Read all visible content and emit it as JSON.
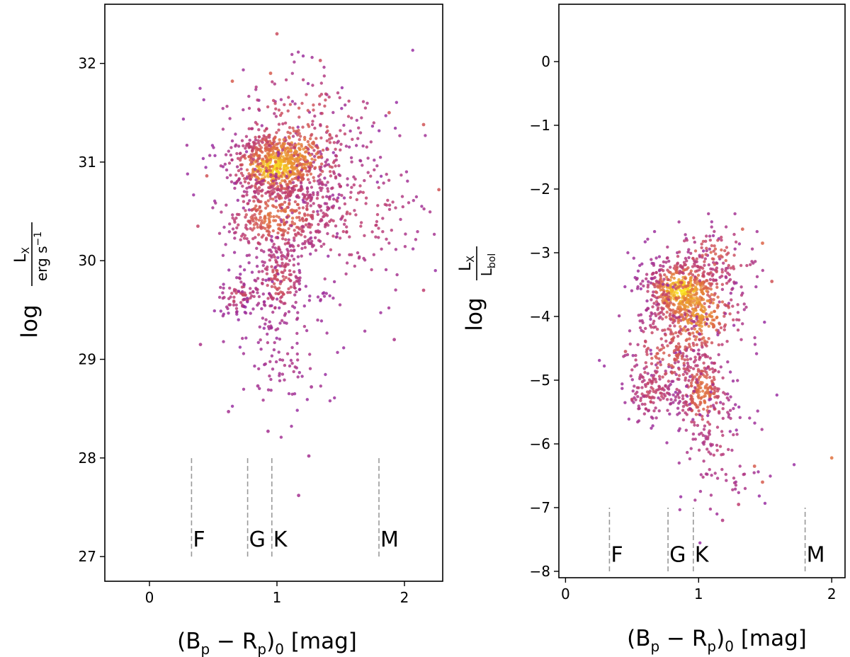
{
  "chart_data": [
    {
      "type": "scatter",
      "id": "left",
      "title": "",
      "xlabel": "(Bp − Rp)0 [mag]",
      "ylabel": "log Lx / erg s−1",
      "ylabel_parts": {
        "log": "log",
        "num": "L",
        "num_sub": "X",
        "den": "erg s",
        "den_sup": "−1"
      },
      "xlabel_parts": {
        "open": "(B",
        "s1": "p",
        "mid": " − R",
        "s2": "p",
        "close": ")",
        "s3": "0",
        "unit": " [mag]"
      },
      "xlim": [
        -0.35,
        2.3
      ],
      "ylim": [
        26.75,
        32.6
      ],
      "xticks": [
        0,
        1,
        2
      ],
      "xtick_labels": [
        "0",
        "1",
        "2"
      ],
      "yticks": [
        27,
        28,
        29,
        30,
        31,
        32
      ],
      "ytick_labels": [
        "27",
        "28",
        "29",
        "30",
        "31",
        "32"
      ],
      "grid": false,
      "class_markers": [
        {
          "label": "F",
          "x": 0.33
        },
        {
          "label": "G",
          "x": 0.77
        },
        {
          "label": "K",
          "x": 0.96
        },
        {
          "label": "M",
          "x": 1.8
        }
      ],
      "class_line_range": [
        27.0,
        28.0
      ],
      "class_label_y": 27.1,
      "clusters": [
        {
          "cx": 0.98,
          "cy": 30.95,
          "sx": 0.17,
          "sy": 0.15,
          "n": 520,
          "density": 0.95
        },
        {
          "cx": 1.12,
          "cy": 31.05,
          "sx": 0.22,
          "sy": 0.22,
          "n": 320,
          "density": 0.75
        },
        {
          "cx": 1.0,
          "cy": 30.45,
          "sx": 0.22,
          "sy": 0.2,
          "n": 380,
          "density": 0.6
        },
        {
          "cx": 1.02,
          "cy": 29.8,
          "sx": 0.1,
          "sy": 0.22,
          "n": 170,
          "density": 0.42
        },
        {
          "cx": 0.72,
          "cy": 29.65,
          "sx": 0.09,
          "sy": 0.1,
          "n": 80,
          "density": 0.35
        },
        {
          "cx": 1.05,
          "cy": 29.1,
          "sx": 0.2,
          "sy": 0.4,
          "n": 110,
          "density": 0.15
        },
        {
          "cx": 1.55,
          "cy": 30.5,
          "sx": 0.35,
          "sy": 0.45,
          "n": 220,
          "density": 0.3
        },
        {
          "cx": 1.2,
          "cy": 31.4,
          "sx": 0.35,
          "sy": 0.3,
          "n": 120,
          "density": 0.45
        }
      ],
      "outliers": [
        {
          "x": 1.0,
          "y": 32.3,
          "d": 0.4
        },
        {
          "x": 1.34,
          "y": 32.03,
          "d": 0.4
        },
        {
          "x": 0.95,
          "y": 31.9,
          "d": 0.5
        },
        {
          "x": 0.65,
          "y": 31.82,
          "d": 0.5
        },
        {
          "x": 2.15,
          "y": 31.38,
          "d": 0.45
        },
        {
          "x": 1.88,
          "y": 31.5,
          "d": 0.45
        },
        {
          "x": 0.45,
          "y": 30.86,
          "d": 0.45
        },
        {
          "x": 2.27,
          "y": 30.72,
          "d": 0.45
        },
        {
          "x": 0.4,
          "y": 29.15,
          "d": 0.15
        },
        {
          "x": 0.85,
          "y": 28.73,
          "d": 0.1
        },
        {
          "x": 0.93,
          "y": 28.27,
          "d": 0.1
        },
        {
          "x": 1.25,
          "y": 28.02,
          "d": 0.1
        },
        {
          "x": 1.17,
          "y": 27.62,
          "d": 0.1
        },
        {
          "x": 1.27,
          "y": 28.72,
          "d": 0.1
        },
        {
          "x": 0.62,
          "y": 28.47,
          "d": 0.1
        },
        {
          "x": 1.92,
          "y": 29.2,
          "d": 0.15
        },
        {
          "x": 2.15,
          "y": 29.7,
          "d": 0.3
        },
        {
          "x": 0.38,
          "y": 30.35,
          "d": 0.35
        }
      ]
    },
    {
      "type": "scatter",
      "id": "right",
      "title": "",
      "xlabel": "(Bp − Rp)0 [mag]",
      "ylabel": "log Lx / Lbol",
      "ylabel_parts": {
        "log": "log",
        "num": "L",
        "num_sub": "X",
        "den": "L",
        "den_sub": "bol"
      },
      "xlabel_parts": {
        "open": "(B",
        "s1": "p",
        "mid": " − R",
        "s2": "p",
        "close": ")",
        "s3": "0",
        "unit": " [mag]"
      },
      "xlim": [
        -0.05,
        2.1
      ],
      "ylim": [
        -8.1,
        0.9
      ],
      "xticks": [
        0,
        1,
        2
      ],
      "xtick_labels": [
        "0",
        "1",
        "2"
      ],
      "yticks": [
        0,
        -1,
        -2,
        -3,
        -4,
        -5,
        -6,
        -7,
        -8
      ],
      "ytick_labels": [
        "0",
        "−1",
        "−2",
        "−3",
        "−4",
        "−5",
        "−6",
        "−7",
        "−8"
      ],
      "grid": false,
      "class_markers": [
        {
          "label": "F",
          "x": 0.33
        },
        {
          "label": "G",
          "x": 0.77
        },
        {
          "label": "K",
          "x": 0.96
        },
        {
          "label": "M",
          "x": 1.8
        }
      ],
      "class_line_range": [
        -8.0,
        -7.0
      ],
      "class_label_y": -7.85,
      "clusters": [
        {
          "cx": 0.88,
          "cy": -3.6,
          "sx": 0.14,
          "sy": 0.25,
          "n": 420,
          "density": 0.95
        },
        {
          "cx": 0.98,
          "cy": -3.9,
          "sx": 0.18,
          "sy": 0.45,
          "n": 380,
          "density": 0.75
        },
        {
          "cx": 1.03,
          "cy": -5.2,
          "sx": 0.1,
          "sy": 0.35,
          "n": 230,
          "density": 0.6
        },
        {
          "cx": 0.65,
          "cy": -5.2,
          "sx": 0.1,
          "sy": 0.25,
          "n": 120,
          "density": 0.35
        },
        {
          "cx": 0.78,
          "cy": -4.6,
          "sx": 0.18,
          "sy": 0.4,
          "n": 180,
          "density": 0.5
        },
        {
          "cx": 1.15,
          "cy": -6.1,
          "sx": 0.18,
          "sy": 0.5,
          "n": 90,
          "density": 0.25
        },
        {
          "cx": 1.1,
          "cy": -3.05,
          "sx": 0.2,
          "sy": 0.25,
          "n": 90,
          "density": 0.5
        }
      ],
      "outliers": [
        {
          "x": 2.0,
          "y": -6.22,
          "d": 0.6
        },
        {
          "x": 1.48,
          "y": -2.85,
          "d": 0.55
        },
        {
          "x": 1.55,
          "y": -3.45,
          "d": 0.45
        },
        {
          "x": 1.48,
          "y": -6.6,
          "d": 0.5
        },
        {
          "x": 1.42,
          "y": -6.35,
          "d": 0.5
        },
        {
          "x": 1.3,
          "y": -6.95,
          "d": 0.3
        },
        {
          "x": 1.18,
          "y": -7.2,
          "d": 0.2
        },
        {
          "x": 0.45,
          "y": -4.55,
          "d": 0.4
        },
        {
          "x": 0.5,
          "y": -5.3,
          "d": 0.3
        },
        {
          "x": 1.33,
          "y": -2.63,
          "d": 0.5
        }
      ]
    }
  ]
}
